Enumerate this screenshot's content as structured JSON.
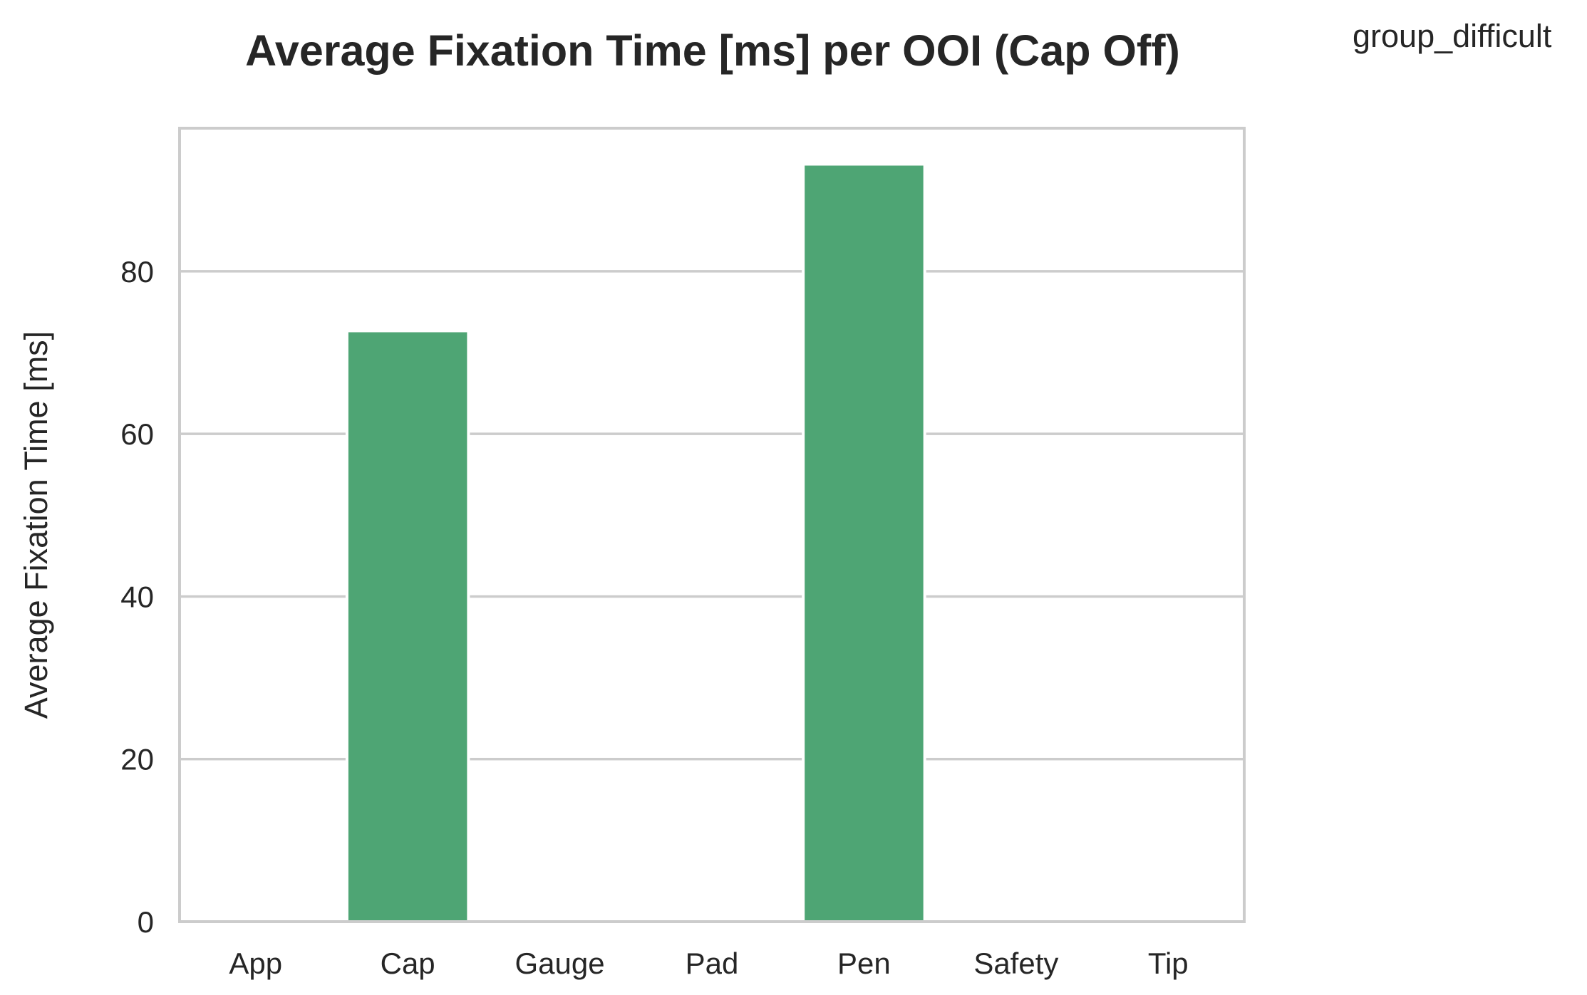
{
  "chart_data": {
    "type": "bar",
    "title": "Average Fixation Time [ms] per OOI (Cap Off)",
    "legend_label": "group_difficult",
    "xlabel": "",
    "ylabel": "Average Fixation Time [ms]",
    "categories": [
      "App",
      "Cap",
      "Gauge",
      "Pad",
      "Pen",
      "Safety",
      "Tip"
    ],
    "values": [
      0,
      72.5,
      0,
      0,
      93,
      0,
      0
    ],
    "ylim": [
      0,
      97.6
    ],
    "yticks": [
      0,
      20,
      40,
      60,
      80
    ],
    "grid": "horizontal",
    "legend_placement": "top-right",
    "bar_color": "#4ea574",
    "grid_color": "#cccccc",
    "frame_color": "#cccccc"
  }
}
